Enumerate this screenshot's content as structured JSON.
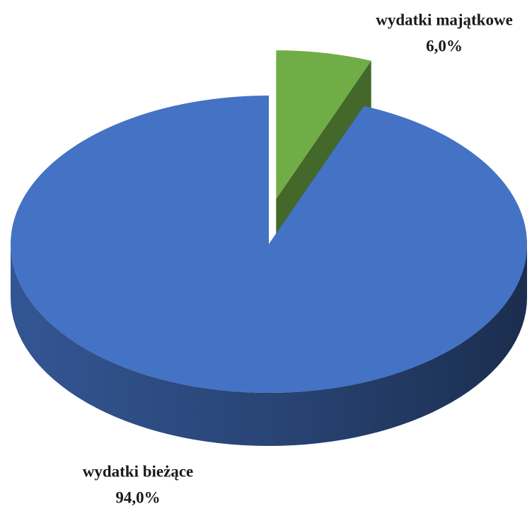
{
  "chart_data": {
    "type": "pie",
    "categories": [
      "wydatki bieżące",
      "wydatki majątkowe"
    ],
    "values": [
      94,
      6
    ],
    "value_labels": [
      "94,0%",
      "6,0%"
    ],
    "colors": [
      "#4472c4",
      "#70ad47"
    ]
  }
}
